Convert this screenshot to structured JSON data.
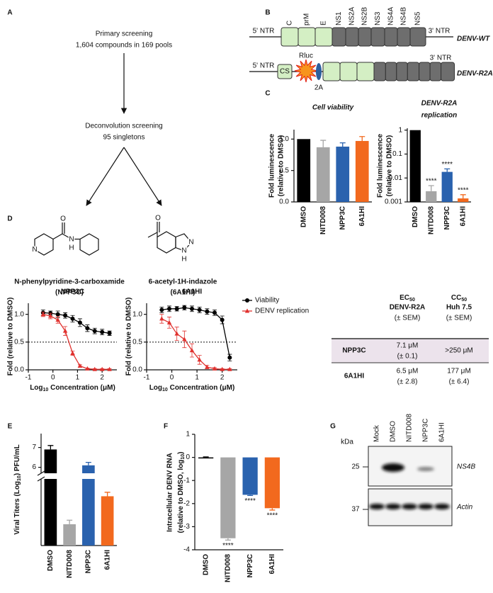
{
  "panel_labels": [
    "A",
    "B",
    "C",
    "D",
    "E",
    "F",
    "G"
  ],
  "flowchart": {
    "steps": [
      [
        "Primary screening",
        "1,604 compounds in 169 pools"
      ],
      [
        "Deconvolution screening",
        "95 singletons"
      ]
    ],
    "compounds": [
      {
        "name": "N-phenylpyridine-3-carboxamide",
        "abbr": "(NPP3C)",
        "color": "#1d80c3",
        "atoms": [
          "O",
          "N",
          "H",
          "N"
        ]
      },
      {
        "name": "6-acetyl-1H-indazole",
        "abbr": "(6A1HI)",
        "color": "#f08022",
        "atoms": [
          "O",
          "N",
          "N",
          "H"
        ]
      }
    ]
  },
  "genome": {
    "wt": {
      "five": "5' NTR",
      "three": "3' NTR",
      "name": "DENV-WT",
      "structural": [
        "C",
        "prM",
        "E"
      ],
      "nonstructural": [
        "NS1",
        "NS2A",
        "NS2B",
        "NS3",
        "NS4A",
        "NS4B",
        "NS5"
      ]
    },
    "r2a": {
      "five": "5' NTR",
      "cs": "CS",
      "rluc": "Rluc",
      "p2a": "2A",
      "three": "3' NTR",
      "name": "DENV-R2A"
    }
  },
  "chart_data": [
    {
      "type": "bar",
      "title": "Cell viability",
      "ylabel": [
        "Fold luminescence",
        "(relative to DMSO)"
      ],
      "categories": [
        "DMSO",
        "NITD008",
        "NPP3C",
        "6A1HI"
      ],
      "values": [
        1.0,
        0.87,
        0.88,
        0.97
      ],
      "errors": [
        0,
        0.11,
        0.06,
        0.07
      ],
      "colors": [
        "#000000",
        "#a6a6a6",
        "#2a62ae",
        "#f2691e"
      ],
      "ylim": [
        0,
        1.15
      ],
      "yticks": [
        {
          "value": 0,
          "label": "0.0"
        },
        0.5,
        {
          "value": 1,
          "label": "1.0"
        }
      ]
    },
    {
      "type": "bar",
      "title": [
        "DENV-R2A",
        "replication"
      ],
      "ylabel": [
        "Fold luminescence",
        "(relative to DMSO)"
      ],
      "categories": [
        "DMSO",
        "NITD008",
        "NPP3C",
        "6A1HI"
      ],
      "values": [
        1,
        0.0028,
        0.018,
        0.0014
      ],
      "errors": [
        0,
        0.002,
        0.006,
        0.0006
      ],
      "annotations": [
        null,
        "****",
        "****",
        "****"
      ],
      "colors": [
        "#000000",
        "#a6a6a6",
        "#2a62ae",
        "#f2691e"
      ],
      "log_scale": true,
      "ylim": [
        0.001,
        1.2
      ],
      "yticks": [
        1,
        0.1,
        0.01,
        0.001
      ]
    },
    {
      "type": "line",
      "title": "NPP3C",
      "ylabel": "Fold (relative to DMSO)",
      "xlabel": [
        "Log",
        "10",
        " Concentration (μM)"
      ],
      "x": [
        -0.4,
        -0.1,
        0.2,
        0.5,
        0.8,
        1.1,
        1.4,
        1.7,
        2.0,
        2.3
      ],
      "xlim": [
        -1,
        2.6
      ],
      "xticks": [
        -1,
        0,
        1,
        2
      ],
      "ylim": [
        0,
        1.2
      ],
      "yticks": [
        {
          "value": 0,
          "label": "0.0"
        },
        0.5,
        {
          "value": 1,
          "label": "1.0"
        }
      ],
      "hline": 0.5,
      "series": [
        {
          "name": "Viability",
          "color": "#000000",
          "marker": "circle",
          "values": [
            1.03,
            1.02,
            1.0,
            0.98,
            0.92,
            0.85,
            0.75,
            0.7,
            0.68,
            0.66
          ],
          "errors": [
            0.05,
            0.04,
            0.06,
            0.05,
            0.06,
            0.07,
            0.06,
            0.05,
            0.05,
            0.04
          ]
        },
        {
          "name": "DENV replication",
          "color": "#e0312e",
          "marker": "triangle",
          "values": [
            1.0,
            0.97,
            0.9,
            0.7,
            0.3,
            0.07,
            0.02,
            0.01,
            0.01,
            0.01
          ],
          "errors": [
            0.04,
            0.05,
            0.06,
            0.08,
            0.04,
            0.02,
            0.01,
            0.01,
            0.01,
            0.01
          ]
        }
      ]
    },
    {
      "type": "line",
      "title": "6A1HI",
      "ylabel": "Fold (relative to DMSO)",
      "xlabel": [
        "Log",
        "10",
        " Concentration (μM)"
      ],
      "x": [
        -0.4,
        -0.1,
        0.2,
        0.5,
        0.8,
        1.1,
        1.4,
        1.7,
        2.0,
        2.3
      ],
      "xlim": [
        -1,
        2.6
      ],
      "xticks": [
        -1,
        0,
        1,
        2
      ],
      "ylim": [
        0,
        1.2
      ],
      "yticks": [
        {
          "value": 0,
          "label": "0.0"
        },
        0.5,
        {
          "value": 1,
          "label": "1.0"
        }
      ],
      "hline": 0.5,
      "legend": true,
      "series": [
        {
          "name": "Viability",
          "color": "#000000",
          "marker": "circle",
          "values": [
            1.08,
            1.1,
            1.1,
            1.12,
            1.1,
            1.08,
            1.05,
            1.03,
            0.9,
            0.22
          ],
          "errors": [
            0.05,
            0.05,
            0.04,
            0.04,
            0.05,
            0.05,
            0.05,
            0.05,
            0.07,
            0.06
          ]
        },
        {
          "name": "DENV replication",
          "color": "#e0312e",
          "marker": "triangle",
          "values": [
            0.92,
            0.85,
            0.65,
            0.55,
            0.35,
            0.18,
            0.05,
            0.02,
            0.01,
            0.01
          ],
          "errors": [
            0.08,
            0.1,
            0.12,
            0.15,
            0.12,
            0.08,
            0.03,
            0.02,
            0.01,
            0.01
          ]
        }
      ]
    },
    {
      "type": "broken_bar",
      "ylabel": [
        "Viral Titers (Log",
        "10",
        ") PFU/mL"
      ],
      "categories": [
        "DMSO",
        "NITD008",
        "NPP3C",
        "6A1HI"
      ],
      "values": [
        6.9,
        1.6,
        6.1,
        3.7
      ],
      "errors": [
        0.2,
        0.3,
        0.15,
        0.3
      ],
      "colors": [
        "#000000",
        "#a6a6a6",
        "#2a62ae",
        "#f2691e"
      ],
      "ylim_lower": [
        0,
        5
      ],
      "ylim_upper": [
        5.7,
        7.7
      ],
      "yticks": [
        6,
        7
      ]
    },
    {
      "type": "bar",
      "ylabel": [
        "Intracellular DENV RNA",
        "(relative to DMSO, log",
        "10",
        ")"
      ],
      "categories": [
        "DMSO",
        "NITD008",
        "NPP3C",
        "6A1HI"
      ],
      "values": [
        0,
        -3.5,
        -1.62,
        -2.2
      ],
      "errors": [
        0.02,
        0.08,
        0.03,
        0.08
      ],
      "annotations": [
        null,
        "****",
        "****",
        "****"
      ],
      "colors": [
        "#000000",
        "#a6a6a6",
        "#2a62ae",
        "#f2691e"
      ],
      "ylim": [
        -4,
        1
      ],
      "yticks": [
        1,
        0,
        -1,
        -2,
        -3,
        -4
      ]
    }
  ],
  "table": {
    "header": [
      {
        "sym": "EC",
        "sub": "50",
        "lines": [
          "DENV-R2A",
          "(± SEM)"
        ]
      },
      {
        "sym": "CC",
        "sub": "50",
        "lines": [
          "Huh 7.5",
          "(± SEM)"
        ]
      }
    ],
    "rows": [
      {
        "name": "NPP3C",
        "cells": [
          [
            "7.1 μM",
            "(± 0.1)"
          ],
          [
            ">250 μM"
          ]
        ]
      },
      {
        "name": "6A1HI",
        "cells": [
          [
            "6.5 μM",
            "(± 2.8)"
          ],
          [
            "177 μM",
            "(± 6.4)"
          ]
        ]
      }
    ]
  },
  "blot": {
    "kda": "kDa",
    "markers": [
      "25",
      "37"
    ],
    "lanes": [
      "Mock",
      "DMSO",
      "NITD008",
      "NPP3C",
      "6A1HI"
    ],
    "bands": [
      "NS4B",
      "Actin"
    ]
  }
}
